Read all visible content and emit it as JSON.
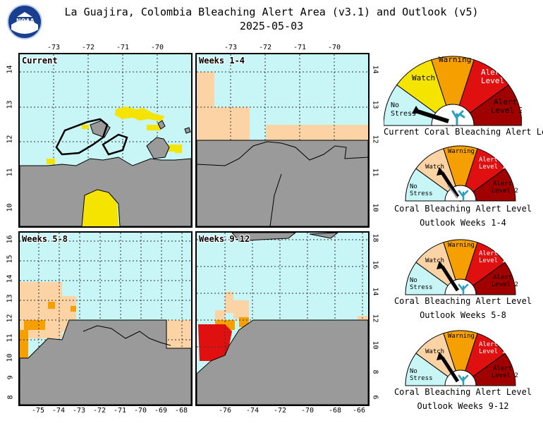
{
  "header": {
    "title": "La Guajira, Colombia Bleaching Alert Area (v3.1) and Outlook (v5)",
    "date": "2025-05-03",
    "logo_text": "NOAA"
  },
  "panels": [
    {
      "label": "Current",
      "lon_ticks_top": [
        "-73",
        "-72",
        "-71",
        "-70"
      ],
      "lat_ticks": [
        "14",
        "13",
        "12",
        "11",
        "10"
      ]
    },
    {
      "label": "Weeks 1-4",
      "lon_ticks_top": [
        "-73",
        "-72",
        "-71",
        "-70"
      ],
      "lat_ticks": [
        "14",
        "13",
        "12",
        "11",
        "10"
      ]
    },
    {
      "label": "Weeks 5-8",
      "lon_ticks_bottom": [
        "-75",
        "-74",
        "-73",
        "-72",
        "-71",
        "-70",
        "-69",
        "-68"
      ],
      "lat_ticks": [
        "16",
        "15",
        "14",
        "13",
        "12",
        "11",
        "10",
        "9",
        "8"
      ]
    },
    {
      "label": "Weeks 9-12",
      "lon_ticks_bottom": [
        "-76",
        "-74",
        "-72",
        "-70",
        "-68",
        "-66"
      ],
      "lat_ticks": [
        "18",
        "16",
        "14",
        "12",
        "10",
        "8",
        "6"
      ]
    }
  ],
  "gauge_labels": {
    "no_stress": "No Stress",
    "watch": "Watch",
    "warning": "Warning",
    "alert1": "Alert Level 1",
    "alert2": "Alert Level 2"
  },
  "gauges": [
    {
      "caption1": "Current Coral Bleaching Alert Level",
      "caption2": "",
      "level": "No Stress"
    },
    {
      "caption1": "Coral Bleaching Alert Level",
      "caption2": "Outlook Weeks 1-4",
      "level": "Watch"
    },
    {
      "caption1": "Coral Bleaching Alert Level",
      "caption2": "Outlook Weeks 5-8",
      "level": "Watch"
    },
    {
      "caption1": "Coral Bleaching Alert Level",
      "caption2": "Outlook Weeks 9-12",
      "level": "Watch"
    }
  ],
  "colors": {
    "no_stress": "#c8f6f6",
    "watch": "#f5e400",
    "watch_outlook": "#fbd3a4",
    "warning": "#f5a000",
    "alert1": "#e01010",
    "alert2": "#a00000",
    "land": "#9a9a9a",
    "coral_icon": "#2a9fc0"
  }
}
